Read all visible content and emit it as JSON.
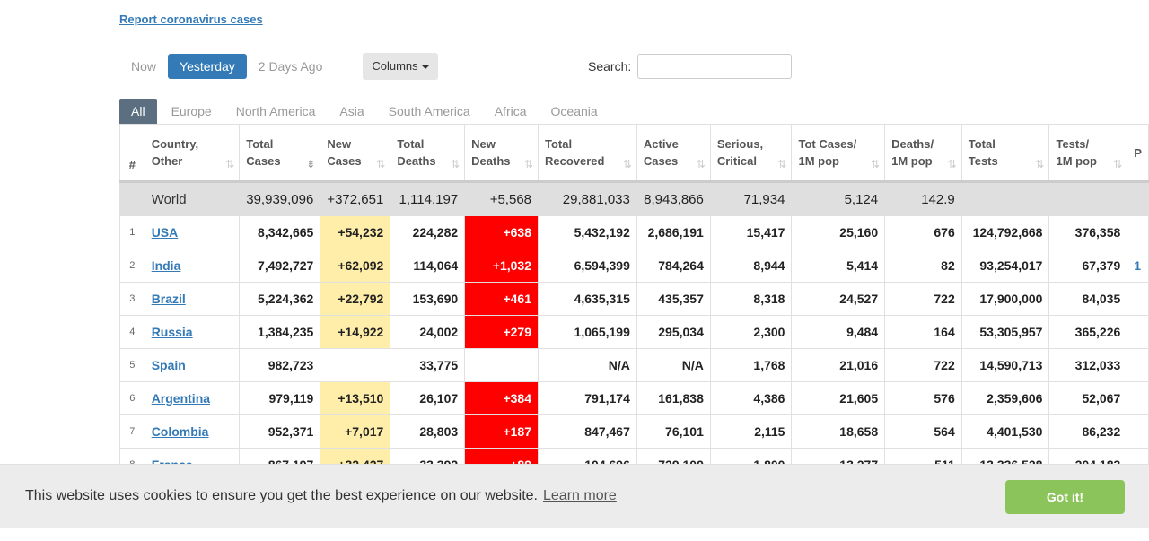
{
  "report_link": "Report coronavirus cases",
  "day_tabs": [
    {
      "label": "Now"
    },
    {
      "label": "Yesterday"
    },
    {
      "label": "2 Days Ago"
    }
  ],
  "active_day": "Yesterday",
  "columns_button": "Columns",
  "search": {
    "label": "Search:",
    "value": "",
    "placeholder": ""
  },
  "region_tabs": [
    "All",
    "Europe",
    "North America",
    "Asia",
    "South America",
    "Africa",
    "Oceania"
  ],
  "table": {
    "headers": {
      "idx": "#",
      "country": [
        "Country,",
        "Other"
      ],
      "total_cases": [
        "Total",
        "Cases"
      ],
      "new_cases": [
        "New",
        "Cases"
      ],
      "total_deaths": [
        "Total",
        "Deaths"
      ],
      "new_deaths": [
        "New",
        "Deaths"
      ],
      "total_recovered": [
        "Total",
        "Recovered"
      ],
      "active_cases": [
        "Active",
        "Cases"
      ],
      "serious": [
        "Serious,",
        "Critical"
      ],
      "tot_cases_1m": [
        "Tot Cases/",
        "1M pop"
      ],
      "deaths_1m": [
        "Deaths/",
        "1M pop"
      ],
      "total_tests": [
        "Total",
        "Tests"
      ],
      "tests_1m": [
        "Tests/",
        "1M pop"
      ],
      "population": [
        "P",
        ""
      ]
    },
    "world": {
      "country": "World",
      "total_cases": "39,939,096",
      "new_cases": "+372,651",
      "total_deaths": "1,114,197",
      "new_deaths": "+5,568",
      "total_recovered": "29,881,033",
      "active_cases": "8,943,866",
      "serious": "71,934",
      "tot_cases_1m": "5,124",
      "deaths_1m": "142.9",
      "total_tests": "",
      "tests_1m": ""
    },
    "rows": [
      {
        "idx": "1",
        "country": "USA",
        "total_cases": "8,342,665",
        "new_cases": "+54,232",
        "total_deaths": "224,282",
        "new_deaths": "+638",
        "total_recovered": "5,432,192",
        "active_cases": "2,686,191",
        "serious": "15,417",
        "tot_cases_1m": "25,160",
        "deaths_1m": "676",
        "total_tests": "124,792,668",
        "tests_1m": "376,358",
        "population": ""
      },
      {
        "idx": "2",
        "country": "India",
        "total_cases": "7,492,727",
        "new_cases": "+62,092",
        "total_deaths": "114,064",
        "new_deaths": "+1,032",
        "total_recovered": "6,594,399",
        "active_cases": "784,264",
        "serious": "8,944",
        "tot_cases_1m": "5,414",
        "deaths_1m": "82",
        "total_tests": "93,254,017",
        "tests_1m": "67,379",
        "population": "1"
      },
      {
        "idx": "3",
        "country": "Brazil",
        "total_cases": "5,224,362",
        "new_cases": "+22,792",
        "total_deaths": "153,690",
        "new_deaths": "+461",
        "total_recovered": "4,635,315",
        "active_cases": "435,357",
        "serious": "8,318",
        "tot_cases_1m": "24,527",
        "deaths_1m": "722",
        "total_tests": "17,900,000",
        "tests_1m": "84,035",
        "population": ""
      },
      {
        "idx": "4",
        "country": "Russia",
        "total_cases": "1,384,235",
        "new_cases": "+14,922",
        "total_deaths": "24,002",
        "new_deaths": "+279",
        "total_recovered": "1,065,199",
        "active_cases": "295,034",
        "serious": "2,300",
        "tot_cases_1m": "9,484",
        "deaths_1m": "164",
        "total_tests": "53,305,957",
        "tests_1m": "365,226",
        "population": ""
      },
      {
        "idx": "5",
        "country": "Spain",
        "total_cases": "982,723",
        "new_cases": "",
        "total_deaths": "33,775",
        "new_deaths": "",
        "total_recovered": "N/A",
        "active_cases": "N/A",
        "serious": "1,768",
        "tot_cases_1m": "21,016",
        "deaths_1m": "722",
        "total_tests": "14,590,713",
        "tests_1m": "312,033",
        "population": ""
      },
      {
        "idx": "6",
        "country": "Argentina",
        "total_cases": "979,119",
        "new_cases": "+13,510",
        "total_deaths": "26,107",
        "new_deaths": "+384",
        "total_recovered": "791,174",
        "active_cases": "161,838",
        "serious": "4,386",
        "tot_cases_1m": "21,605",
        "deaths_1m": "576",
        "total_tests": "2,359,606",
        "tests_1m": "52,067",
        "population": ""
      },
      {
        "idx": "7",
        "country": "Colombia",
        "total_cases": "952,371",
        "new_cases": "+7,017",
        "total_deaths": "28,803",
        "new_deaths": "+187",
        "total_recovered": "847,467",
        "active_cases": "76,101",
        "serious": "2,115",
        "tot_cases_1m": "18,658",
        "deaths_1m": "564",
        "total_tests": "4,401,530",
        "tests_1m": "86,232",
        "population": ""
      },
      {
        "idx": "8",
        "country": "France",
        "total_cases": "867,197",
        "new_cases": "+32,427",
        "total_deaths": "33,392",
        "new_deaths": "+89",
        "total_recovered": "104,696",
        "active_cases": "729,109",
        "serious": "1,800",
        "tot_cases_1m": "13,277",
        "deaths_1m": "511",
        "total_tests": "13,336,528",
        "tests_1m": "204,183",
        "population": ""
      }
    ]
  },
  "cookie": {
    "message": "This website uses cookies to ensure you get the best experience on our website.",
    "learn_more": "Learn more",
    "button": "Got it!"
  },
  "colors": {
    "accent": "#337ab7",
    "new_cases_bg": "#ffeeaa",
    "new_deaths_bg": "#ff0000",
    "cookie_button": "#8bc45a"
  }
}
